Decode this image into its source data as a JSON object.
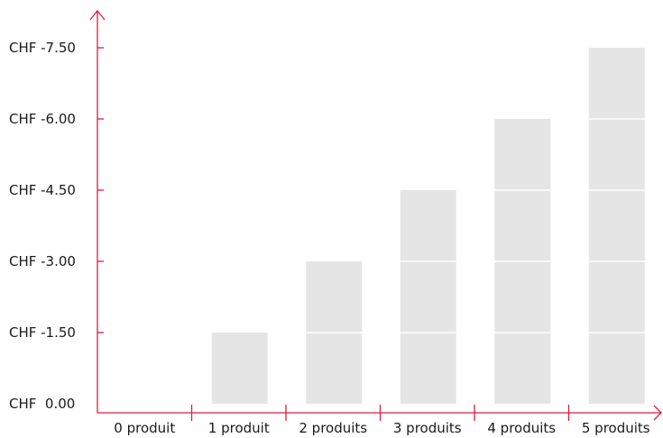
{
  "chart_data": {
    "type": "bar",
    "categories": [
      "0 produit",
      "1 produit",
      "2 produits",
      "3 produits",
      "4 produits",
      "5 produits"
    ],
    "values": [
      0,
      -1.5,
      -3.0,
      -4.5,
      -6.0,
      -7.5
    ],
    "yticks": [
      {
        "value": 0,
        "label": "CHF  0.00"
      },
      {
        "value": -1.5,
        "label": "CHF -1.50"
      },
      {
        "value": -3.0,
        "label": "CHF -3.00"
      },
      {
        "value": -4.5,
        "label": "CHF -4.50"
      },
      {
        "value": -6.0,
        "label": "CHF -6.00"
      },
      {
        "value": -7.5,
        "label": "CHF -7.50"
      }
    ],
    "segment_step": 1.5,
    "ylim": [
      0,
      -7.5
    ],
    "title": "",
    "xlabel": "",
    "ylabel": "",
    "grid": false,
    "colors": {
      "axis": "#d4213d",
      "bar": "#e5e5e5",
      "segment_line": "#ffffff",
      "text": "#1a1a1a"
    }
  }
}
